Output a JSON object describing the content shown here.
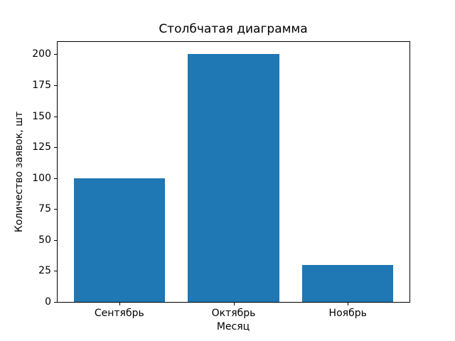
{
  "chart_data": {
    "type": "bar",
    "title": "Столбчатая диаграмма",
    "xlabel": "Месяц",
    "ylabel": "Количество заявок, шт",
    "categories": [
      "Сентябрь",
      "Октябрь",
      "Ноябрь"
    ],
    "values": [
      100,
      200,
      30
    ],
    "yticks": [
      0,
      25,
      50,
      75,
      100,
      125,
      150,
      175,
      200
    ],
    "ylim": [
      0,
      210
    ],
    "xlim": [
      -0.54,
      2.54
    ],
    "bar_width": 0.8,
    "bar_color": "#1f77b4",
    "text_color": "#000000",
    "spine_color": "#000000",
    "background_color": "#ffffff",
    "grid": false,
    "legend": false
  }
}
